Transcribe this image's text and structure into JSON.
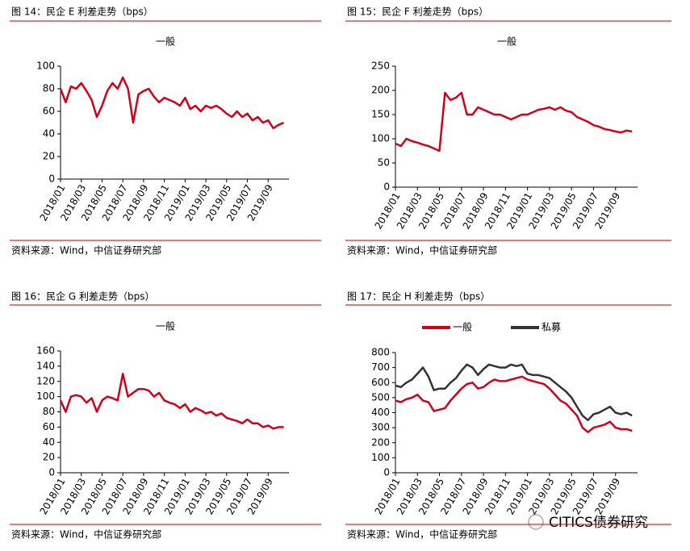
{
  "chart_data": [
    {
      "type": "line",
      "figure_title": "图 14：民企 E 利差走势（bps）",
      "title": "一般",
      "source": "资料来源：Wind，中信证券研究部",
      "categories": [
        "2018/01",
        null,
        null,
        null,
        "2018/03",
        null,
        null,
        null,
        "2018/05",
        null,
        null,
        null,
        "2018/07",
        null,
        null,
        null,
        "2018/09",
        null,
        null,
        null,
        "2018/11",
        null,
        null,
        null,
        "2019/01",
        null,
        null,
        null,
        "2019/03",
        null,
        null,
        null,
        "2019/05",
        null,
        null,
        null,
        "2019/07",
        null,
        null,
        null,
        "2019/09",
        null,
        null,
        null
      ],
      "series": [
        {
          "color": "#d0021b",
          "values": [
            80,
            68,
            82,
            80,
            85,
            78,
            70,
            55,
            65,
            78,
            85,
            80,
            90,
            80,
            50,
            75,
            78,
            80,
            73,
            68,
            72,
            70,
            68,
            65,
            72,
            62,
            65,
            60,
            65,
            63,
            65,
            62,
            58,
            55,
            60,
            55,
            58,
            52,
            55,
            50,
            52,
            45,
            48,
            50
          ]
        }
      ],
      "ylim": [
        0,
        100
      ],
      "yticks": [
        0,
        20,
        40,
        60,
        80,
        100
      ]
    },
    {
      "type": "line",
      "figure_title": "图 15：民企 F 利差走势（bps）",
      "title": "一般",
      "source": "资料来源：Wind，中信证券研究部",
      "categories": [
        "2018/01",
        null,
        null,
        null,
        "2018/03",
        null,
        null,
        null,
        "2018/05",
        null,
        null,
        null,
        "2018/07",
        null,
        null,
        null,
        "2018/09",
        null,
        null,
        null,
        "2018/11",
        null,
        null,
        null,
        "2019/01",
        null,
        null,
        null,
        "2019/03",
        null,
        null,
        null,
        "2019/05",
        null,
        null,
        null,
        "2019/07",
        null,
        null,
        null,
        "2019/09",
        null,
        null,
        null
      ],
      "series": [
        {
          "color": "#d0021b",
          "values": [
            90,
            85,
            100,
            95,
            92,
            88,
            85,
            80,
            75,
            195,
            180,
            185,
            195,
            150,
            150,
            165,
            160,
            155,
            150,
            150,
            145,
            140,
            145,
            150,
            150,
            155,
            160,
            162,
            165,
            160,
            165,
            158,
            155,
            145,
            140,
            135,
            128,
            125,
            120,
            118,
            115,
            113,
            117,
            115
          ]
        }
      ],
      "ylim": [
        0,
        250
      ],
      "yticks": [
        0,
        50,
        100,
        150,
        200,
        250
      ]
    },
    {
      "type": "line",
      "figure_title": "图 16：民企 G 利差走势（bps）",
      "title": "一般",
      "source": "资料来源：Wind，中信证券研究部",
      "categories": [
        "2018/01",
        null,
        null,
        null,
        "2018/03",
        null,
        null,
        null,
        "2018/05",
        null,
        null,
        null,
        "2018/07",
        null,
        null,
        null,
        "2018/09",
        null,
        null,
        null,
        "2018/11",
        null,
        null,
        null,
        "2019/01",
        null,
        null,
        null,
        "2019/03",
        null,
        null,
        null,
        "2019/05",
        null,
        null,
        null,
        "2019/07",
        null,
        null,
        null,
        "2019/09",
        null,
        null,
        null
      ],
      "series": [
        {
          "color": "#d0021b",
          "values": [
            95,
            80,
            100,
            102,
            100,
            92,
            98,
            80,
            95,
            100,
            98,
            95,
            130,
            100,
            105,
            110,
            110,
            108,
            100,
            105,
            95,
            92,
            90,
            85,
            90,
            80,
            85,
            82,
            78,
            80,
            75,
            78,
            72,
            70,
            68,
            65,
            70,
            65,
            65,
            60,
            62,
            58,
            60,
            60
          ]
        }
      ],
      "ylim": [
        0,
        160
      ],
      "yticks": [
        0,
        20,
        40,
        60,
        80,
        100,
        120,
        140,
        160
      ]
    },
    {
      "type": "line",
      "figure_title": "图 17：民企 H 利差走势（bps）",
      "source": "资料来源：Wind，中信证券研究部",
      "categories": [
        "2018/01",
        null,
        null,
        null,
        "2018/03",
        null,
        null,
        null,
        "2018/05",
        null,
        null,
        null,
        "2018/07",
        null,
        null,
        null,
        "2018/09",
        null,
        null,
        null,
        "2018/11",
        null,
        null,
        null,
        "2019/01",
        null,
        null,
        null,
        "2019/03",
        null,
        null,
        null,
        "2019/05",
        null,
        null,
        null,
        "2019/07",
        null,
        null,
        null,
        "2019/09",
        null,
        null,
        null
      ],
      "series": [
        {
          "name": "一般",
          "color": "#d0021b",
          "values": [
            480,
            470,
            490,
            500,
            520,
            480,
            470,
            410,
            420,
            430,
            480,
            520,
            560,
            590,
            600,
            560,
            570,
            600,
            620,
            610,
            610,
            620,
            630,
            640,
            620,
            610,
            600,
            590,
            560,
            520,
            480,
            460,
            420,
            380,
            300,
            270,
            300,
            310,
            320,
            340,
            300,
            290,
            290,
            280
          ]
        },
        {
          "name": "私募",
          "color": "#333333",
          "values": [
            580,
            570,
            600,
            620,
            660,
            700,
            640,
            550,
            560,
            560,
            600,
            630,
            680,
            720,
            700,
            650,
            690,
            720,
            710,
            700,
            700,
            720,
            710,
            720,
            660,
            650,
            650,
            640,
            630,
            600,
            570,
            540,
            500,
            440,
            380,
            350,
            390,
            400,
            420,
            440,
            400,
            390,
            400,
            380
          ]
        }
      ],
      "ylim": [
        0,
        800
      ],
      "yticks": [
        0,
        100,
        200,
        300,
        400,
        500,
        600,
        700,
        800
      ],
      "legend": "top"
    }
  ],
  "watermark": "CITICS债券研究"
}
